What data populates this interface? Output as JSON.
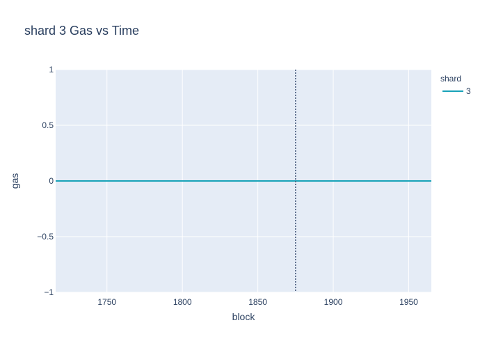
{
  "chart_data": {
    "type": "line",
    "title": "shard 3 Gas vs Time",
    "xlabel": "block",
    "ylabel": "gas",
    "xlim": [
      1716,
      1965
    ],
    "ylim": [
      -1,
      1
    ],
    "x_ticks": [
      1750,
      1800,
      1850,
      1900,
      1950
    ],
    "x_tick_labels": [
      "1750",
      "1800",
      "1850",
      "1900",
      "1950"
    ],
    "y_ticks": [
      1,
      0.5,
      0,
      -0.5,
      -1
    ],
    "y_tick_labels": [
      "1",
      "0.5",
      "0",
      "−0.5",
      "−1"
    ],
    "grid": true,
    "legend": {
      "title": "shard",
      "placement": "right"
    },
    "series": [
      {
        "name": "3",
        "color": "#17a2b8",
        "x": [
          1716,
          1965
        ],
        "y": [
          0,
          0
        ]
      }
    ],
    "vertical_line": {
      "x": 1875,
      "style": "dotted",
      "color": "#4a5d7e"
    },
    "colors": {
      "plot_background": "#e5ecf6",
      "gridline": "#ffffff",
      "text": "#2a3f5f"
    }
  }
}
